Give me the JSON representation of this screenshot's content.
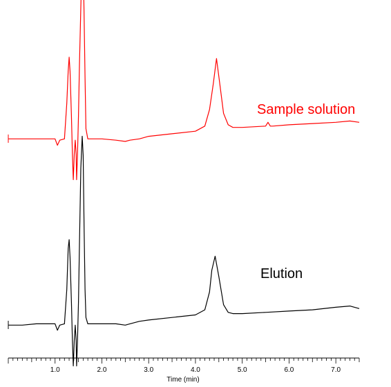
{
  "chart_data": {
    "type": "line",
    "xlabel": "Time (min)",
    "xlim": [
      0,
      7.5
    ],
    "x_ticks": [
      1.0,
      2.0,
      3.0,
      4.0,
      5.0,
      6.0,
      7.0
    ],
    "x_tick_labels": [
      "1.0",
      "2.0",
      "3.0",
      "4.0",
      "5.0",
      "6.0",
      "7.0"
    ],
    "minor_tick_step": 0.1,
    "y_axis_shown": false,
    "grid": false,
    "series": [
      {
        "name": "Sample solution",
        "color": "#ff0000",
        "x": [
          0.0,
          0.3,
          0.6,
          0.9,
          1.0,
          1.05,
          1.1,
          1.2,
          1.25,
          1.28,
          1.3,
          1.32,
          1.35,
          1.37,
          1.39,
          1.41,
          1.43,
          1.45,
          1.46,
          1.48,
          1.5,
          1.52,
          1.55,
          1.58,
          1.6,
          1.62,
          1.64,
          1.66,
          1.7,
          1.8,
          2.0,
          2.3,
          2.5,
          2.6,
          2.8,
          3.0,
          3.5,
          4.0,
          4.2,
          4.3,
          4.38,
          4.45,
          4.52,
          4.6,
          4.7,
          4.8,
          5.0,
          5.5,
          5.55,
          5.6,
          5.65,
          6.0,
          6.5,
          7.0,
          7.3,
          7.5
        ],
        "y": [
          0.2,
          0.2,
          0.2,
          0.2,
          0.2,
          -0.3,
          0.1,
          0.2,
          3.0,
          5.5,
          6.6,
          5.5,
          2.0,
          -1.0,
          -3.0,
          -1.0,
          0.1,
          -1.0,
          -3.0,
          -1.0,
          2.0,
          6.0,
          10.5,
          14.8,
          14.2,
          10.0,
          5.0,
          1.0,
          0.2,
          0.2,
          0.2,
          0.1,
          0.0,
          0.1,
          0.2,
          0.4,
          0.6,
          0.8,
          1.2,
          2.5,
          4.5,
          6.5,
          4.5,
          2.2,
          1.3,
          1.1,
          1.1,
          1.2,
          1.5,
          1.2,
          1.2,
          1.3,
          1.4,
          1.5,
          1.6,
          1.5
        ]
      },
      {
        "name": "Elution",
        "color": "#000000",
        "x": [
          0.0,
          0.3,
          0.6,
          0.9,
          1.0,
          1.05,
          1.1,
          1.2,
          1.25,
          1.28,
          1.3,
          1.32,
          1.35,
          1.37,
          1.39,
          1.41,
          1.43,
          1.45,
          1.46,
          1.48,
          1.5,
          1.52,
          1.55,
          1.58,
          1.6,
          1.62,
          1.64,
          1.66,
          1.7,
          1.8,
          2.0,
          2.3,
          2.5,
          2.6,
          2.8,
          3.0,
          3.5,
          4.0,
          4.2,
          4.3,
          4.35,
          4.42,
          4.5,
          4.6,
          4.7,
          4.8,
          5.0,
          5.5,
          6.0,
          6.5,
          7.0,
          7.3,
          7.5
        ],
        "y": [
          0.2,
          0.2,
          0.3,
          0.3,
          0.3,
          -0.2,
          0.2,
          0.3,
          3.0,
          6.2,
          6.9,
          5.5,
          2.0,
          -1.0,
          -3.0,
          -1.0,
          0.2,
          -1.0,
          -3.0,
          -1.0,
          2.0,
          6.5,
          12.5,
          15.0,
          13.5,
          8.0,
          3.0,
          0.8,
          0.3,
          0.3,
          0.3,
          0.3,
          0.2,
          0.3,
          0.5,
          0.6,
          0.8,
          1.0,
          1.4,
          2.8,
          4.5,
          5.6,
          4.0,
          1.8,
          1.2,
          1.1,
          1.1,
          1.2,
          1.3,
          1.4,
          1.6,
          1.7,
          1.5
        ]
      }
    ]
  }
}
